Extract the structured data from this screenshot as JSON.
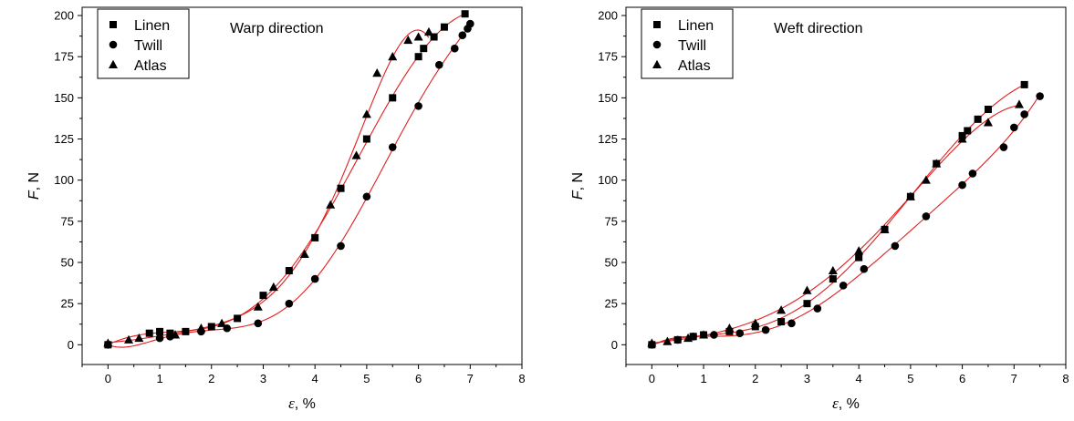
{
  "chart_data": [
    {
      "type": "scatter",
      "annotation": "Warp direction",
      "xlabel_symbol": "ε",
      "xlabel_unit": ", %",
      "ylabel_symbol": "F",
      "ylabel_unit": ", N",
      "xlim": [
        -0.5,
        8
      ],
      "ylim": [
        -12,
        205
      ],
      "xticks": [
        0,
        1,
        2,
        3,
        4,
        5,
        6,
        7,
        8
      ],
      "yticks": [
        0,
        25,
        50,
        75,
        100,
        125,
        150,
        175,
        200
      ],
      "grid": false,
      "legend_position": "top-left",
      "fit_color": "#e02020",
      "series": [
        {
          "name": "Linen",
          "marker": "square",
          "x": [
            0,
            0.8,
            1,
            1.2,
            1.5,
            2,
            2.5,
            3,
            3.5,
            4,
            4.5,
            5,
            5.5,
            6,
            6.1,
            6.3,
            6.5,
            6.9
          ],
          "y": [
            0,
            7,
            8,
            7,
            8,
            11,
            16,
            30,
            45,
            65,
            95,
            125,
            150,
            175,
            180,
            187,
            193,
            201
          ]
        },
        {
          "name": "Twill",
          "marker": "circle",
          "x": [
            0,
            1,
            1.2,
            1.8,
            2.3,
            2.9,
            3.5,
            4,
            4.5,
            5,
            5.5,
            6,
            6.4,
            6.7,
            6.85,
            6.95,
            7
          ],
          "y": [
            0,
            4,
            5,
            8,
            10,
            13,
            25,
            40,
            60,
            90,
            120,
            145,
            170,
            180,
            188,
            192,
            195
          ]
        },
        {
          "name": "Atlas",
          "marker": "triangle",
          "x": [
            0,
            0.4,
            0.6,
            1.3,
            1.8,
            2.2,
            2.9,
            3.2,
            3.8,
            4.3,
            4.8,
            5,
            5.2,
            5.5,
            5.8,
            6,
            6.2
          ],
          "y": [
            1,
            3,
            4,
            6,
            10,
            13,
            23,
            35,
            55,
            85,
            115,
            140,
            165,
            175,
            185,
            187,
            190
          ]
        }
      ]
    },
    {
      "type": "scatter",
      "annotation": "Weft direction",
      "xlabel_symbol": "ε",
      "xlabel_unit": ", %",
      "ylabel_symbol": "F",
      "ylabel_unit": ", N",
      "xlim": [
        -0.5,
        8
      ],
      "ylim": [
        -12,
        205
      ],
      "xticks": [
        0,
        1,
        2,
        3,
        4,
        5,
        6,
        7,
        8
      ],
      "yticks": [
        0,
        25,
        50,
        75,
        100,
        125,
        150,
        175,
        200
      ],
      "grid": false,
      "legend_position": "top-left",
      "fit_color": "#e02020",
      "series": [
        {
          "name": "Linen",
          "marker": "square",
          "x": [
            0,
            0.5,
            0.8,
            1,
            1.5,
            2,
            2.5,
            3,
            3.5,
            4,
            4.5,
            5,
            5.5,
            6,
            6.1,
            6.3,
            6.5,
            7.2
          ],
          "y": [
            0,
            3,
            5,
            6,
            8,
            11,
            14,
            25,
            40,
            53,
            70,
            90,
            110,
            127,
            130,
            137,
            143,
            158
          ]
        },
        {
          "name": "Twill",
          "marker": "circle",
          "x": [
            0,
            0.5,
            0.8,
            1.2,
            1.7,
            2.2,
            2.7,
            3.2,
            3.7,
            4.1,
            4.7,
            5.3,
            6,
            6.2,
            6.8,
            7,
            7.2,
            7.5
          ],
          "y": [
            0,
            3,
            5,
            6,
            7,
            9,
            13,
            22,
            36,
            46,
            60,
            78,
            97,
            104,
            120,
            132,
            140,
            151
          ]
        },
        {
          "name": "Atlas",
          "marker": "triangle",
          "x": [
            0,
            0.3,
            0.7,
            1,
            1.5,
            2,
            2.5,
            3,
            3.5,
            4,
            4.5,
            5,
            5.3,
            5.5,
            6,
            6.5,
            7.1
          ],
          "y": [
            1,
            2,
            4,
            6,
            10,
            13,
            21,
            33,
            45,
            57,
            70,
            90,
            100,
            110,
            125,
            135,
            146
          ]
        }
      ]
    }
  ]
}
